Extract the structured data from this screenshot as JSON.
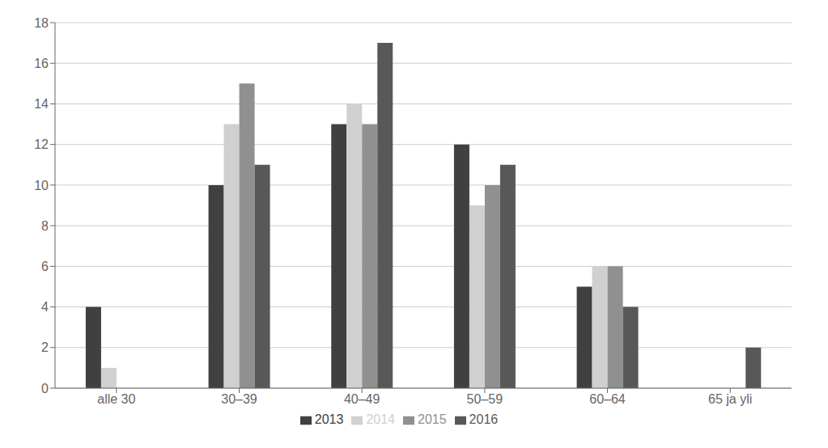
{
  "chart_data": {
    "type": "bar",
    "categories": [
      "alle 30",
      "30–39",
      "40–49",
      "50–59",
      "60–64",
      "65 ja yli"
    ],
    "series": [
      {
        "name": "2013",
        "color": "#404040",
        "values": [
          4,
          10,
          13,
          12,
          5,
          0
        ]
      },
      {
        "name": "2014",
        "color": "#d0d0d0",
        "values": [
          1,
          13,
          14,
          9,
          6,
          0
        ]
      },
      {
        "name": "2015",
        "color": "#909090",
        "values": [
          0,
          15,
          13,
          10,
          6,
          0
        ]
      },
      {
        "name": "2016",
        "color": "#585858",
        "values": [
          0,
          11,
          17,
          11,
          4,
          2
        ]
      }
    ],
    "ylim": [
      0,
      18
    ],
    "yticks": [
      0,
      2,
      4,
      6,
      8,
      10,
      12,
      14,
      16,
      18
    ],
    "grid": true,
    "legend": "bottom"
  }
}
